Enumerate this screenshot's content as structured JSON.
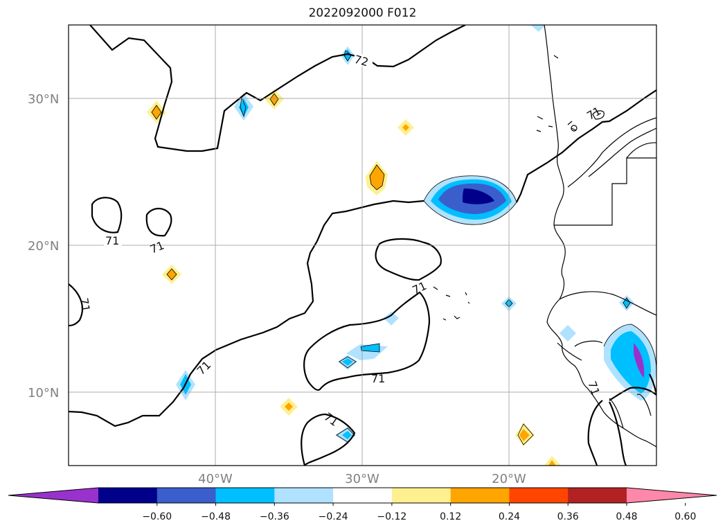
{
  "title": "2022092000 F012",
  "lat_labels": [
    "30°N",
    "20°N",
    "10°N"
  ],
  "lon_labels": [
    "40°W",
    "30°W",
    "20°W"
  ],
  "contour_labels": [
    "72",
    "71",
    "71",
    "71",
    "71",
    "71",
    "71",
    "71",
    "71",
    "71",
    "71"
  ],
  "colorbar": {
    "colors": [
      "#9932cc",
      "#00008b",
      "#3a5fcd",
      "#00bfff",
      "#b0e2ff",
      "#ffffff",
      "#fff08f",
      "#ffa500",
      "#ff4500",
      "#b22222",
      "#ff88aa"
    ],
    "tick_labels": [
      "−0.60",
      "−0.48",
      "−0.36",
      "−0.24",
      "−0.12",
      "0.12",
      "0.24",
      "0.36",
      "0.48",
      "0.60"
    ]
  }
}
